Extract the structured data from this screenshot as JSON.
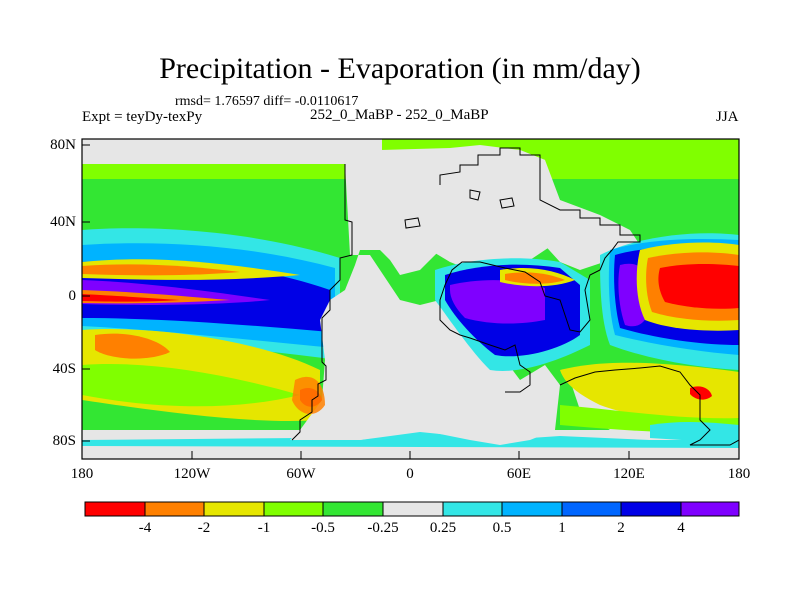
{
  "title": "Precipitation - Evaporation (in mm/day)",
  "stats": "rmsd= 1.76597 diff= -0.0110617",
  "expt": "Expt = teyDy-texPy",
  "case": "252_0_MaBP - 252_0_MaBP",
  "season": "JJA",
  "lat_labels": [
    "80N",
    "40N",
    "0",
    "40S",
    "80S"
  ],
  "lon_labels": [
    "180",
    "120W",
    "60W",
    "0",
    "60E",
    "120E",
    "180"
  ],
  "colorbar": {
    "labels": [
      "-4",
      "-2",
      "-1",
      "-0.5",
      "-0.25",
      "0.25",
      "0.5",
      "1",
      "2",
      "4"
    ],
    "colors": [
      "#ff0000",
      "#ff8000",
      "#e6e600",
      "#80ff00",
      "#33e633",
      "#e6e6e6",
      "#33e6e6",
      "#00b3ff",
      "#0066ff",
      "#0000e6",
      "#7f00ff"
    ]
  },
  "colors": {
    "land": "#e6e6e6",
    "ocean_bg": "#33e633"
  }
}
